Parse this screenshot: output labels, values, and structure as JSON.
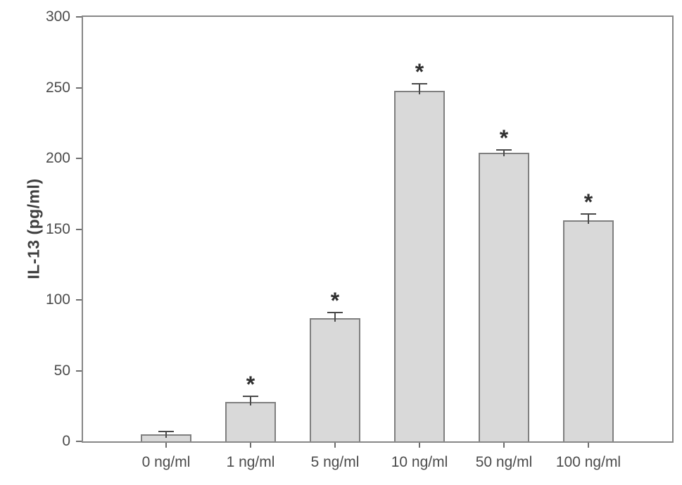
{
  "chart_data": {
    "type": "bar",
    "title": "",
    "xlabel": "",
    "ylabel": "IL-13 (pg/ml)",
    "ylim": [
      0,
      300
    ],
    "yticks": [
      0,
      50,
      100,
      150,
      200,
      250,
      300
    ],
    "categories": [
      "0 ng/ml",
      "1 ng/ml",
      "5 ng/ml",
      "10 ng/ml",
      "50 ng/ml",
      "100 ng/ml"
    ],
    "values": [
      5,
      28,
      87,
      248,
      204,
      156
    ],
    "errors": [
      2.5,
      4.5,
      4.5,
      5,
      2.5,
      5
    ],
    "significance": [
      "",
      "*",
      "*",
      "*",
      "*",
      "*"
    ],
    "grid": false,
    "legend": null,
    "colors": {
      "bar_fill": "#d9d9d9",
      "bar_border": "#7f7f7f",
      "axis_frame": "#878787",
      "tick_mark": "#6e6e6e",
      "tick_text": "#4c4c4c",
      "error_bar": "#4a4a4a",
      "significance_text": "#2f2f2f",
      "background": "#ffffff"
    }
  }
}
